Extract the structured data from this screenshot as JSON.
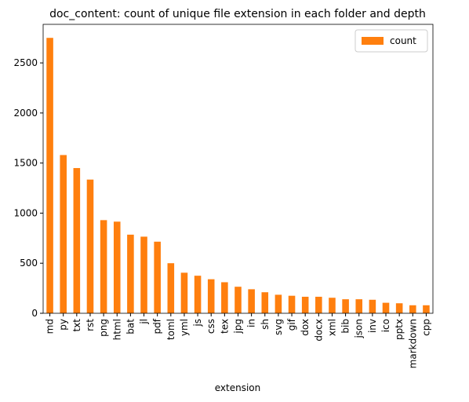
{
  "chart_data": {
    "type": "bar",
    "title": "doc_content: count of unique file extension in each folder and depth",
    "x_label": "extension",
    "categories": [
      "md",
      "py",
      "txt",
      "rst",
      "png",
      "html",
      "bat",
      "jl",
      "pdf",
      "toml",
      "yml",
      "js",
      "css",
      "tex",
      "jpg",
      "in",
      "sh",
      "svg",
      "gif",
      "dox",
      "docx",
      "xml",
      "bib",
      "json",
      "inv",
      "ico",
      "pptx",
      "markdown",
      "cpp"
    ],
    "series": [
      {
        "name": "count",
        "color": "#ff7f0e",
        "values": [
          2750,
          1580,
          1450,
          1335,
          930,
          915,
          785,
          765,
          715,
          500,
          405,
          375,
          340,
          310,
          265,
          240,
          210,
          185,
          175,
          165,
          165,
          155,
          140,
          140,
          135,
          105,
          100,
          80,
          80
        ]
      }
    ],
    "ylim": [
      0,
      2885
    ],
    "yticks": [
      0,
      500,
      1000,
      1500,
      2000,
      2500
    ],
    "legend": "upper right"
  }
}
